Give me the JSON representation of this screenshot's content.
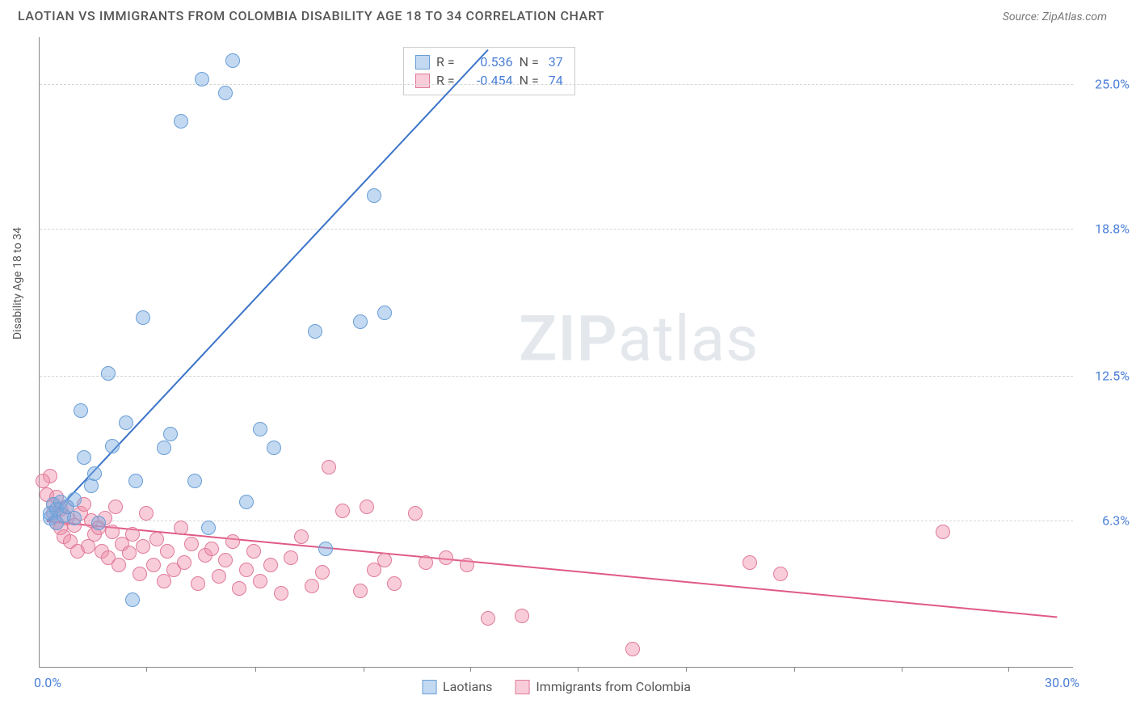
{
  "title": "LAOTIAN VS IMMIGRANTS FROM COLOMBIA DISABILITY AGE 18 TO 34 CORRELATION CHART",
  "source_label": "Source: ZipAtlas.com",
  "y_axis_label": "Disability Age 18 to 34",
  "watermark_a": "ZIP",
  "watermark_b": "atlas",
  "chart": {
    "type": "scatter",
    "xlim": [
      0,
      30
    ],
    "ylim": [
      0,
      27
    ],
    "x_origin_label": "0.0%",
    "x_max_label": "30.0%",
    "y_ticks": [
      6.3,
      12.5,
      18.8,
      25.0
    ],
    "y_tick_labels": [
      "6.3%",
      "12.5%",
      "18.8%",
      "25.0%"
    ],
    "x_tick_positions": [
      3.1,
      6.25,
      9.4,
      12.5,
      15.6,
      18.75,
      21.9,
      25.0,
      28.1
    ],
    "grid_color": "#d6d6d6",
    "axis_color": "#888888",
    "background_color": "#ffffff"
  },
  "series": {
    "laotians": {
      "label": "Laotians",
      "fill": "rgba(120,170,225,0.45)",
      "stroke": "#6a9ed6",
      "trend_color": "#3a73c9",
      "marker_r": 9,
      "R": "0.536",
      "N": "37",
      "trend": {
        "x1": 0.2,
        "y1": 6.3,
        "x2": 13.0,
        "y2": 26.5
      },
      "points": [
        [
          0.3,
          6.4
        ],
        [
          0.3,
          6.6
        ],
        [
          0.4,
          7.0
        ],
        [
          0.5,
          6.2
        ],
        [
          0.5,
          6.8
        ],
        [
          0.6,
          7.1
        ],
        [
          0.7,
          6.5
        ],
        [
          0.8,
          6.9
        ],
        [
          1.0,
          7.2
        ],
        [
          1.0,
          6.4
        ],
        [
          1.2,
          11.0
        ],
        [
          1.3,
          9.0
        ],
        [
          1.5,
          7.8
        ],
        [
          1.6,
          8.3
        ],
        [
          1.7,
          6.2
        ],
        [
          2.0,
          12.6
        ],
        [
          2.1,
          9.5
        ],
        [
          2.5,
          10.5
        ],
        [
          2.7,
          2.9
        ],
        [
          2.8,
          8.0
        ],
        [
          3.0,
          15.0
        ],
        [
          3.6,
          9.4
        ],
        [
          3.8,
          10.0
        ],
        [
          4.1,
          23.4
        ],
        [
          4.5,
          8.0
        ],
        [
          4.7,
          25.2
        ],
        [
          4.9,
          6.0
        ],
        [
          5.4,
          24.6
        ],
        [
          5.6,
          26.0
        ],
        [
          6.0,
          7.1
        ],
        [
          6.4,
          10.2
        ],
        [
          6.8,
          9.4
        ],
        [
          8.0,
          14.4
        ],
        [
          8.3,
          5.1
        ],
        [
          9.3,
          14.8
        ],
        [
          9.7,
          20.2
        ],
        [
          10.0,
          15.2
        ]
      ]
    },
    "colombia": {
      "label": "Immigrants from Colombia",
      "fill": "rgba(240,145,170,0.45)",
      "stroke": "#e07a9a",
      "trend_color": "#e05a85",
      "marker_r": 9,
      "R": "-0.454",
      "N": "74",
      "trend": {
        "x1": 0.2,
        "y1": 6.3,
        "x2": 29.5,
        "y2": 2.2
      },
      "points": [
        [
          0.2,
          7.4
        ],
        [
          0.3,
          8.2
        ],
        [
          0.4,
          6.6
        ],
        [
          0.4,
          7.0
        ],
        [
          0.5,
          6.2
        ],
        [
          0.5,
          7.3
        ],
        [
          0.6,
          6.0
        ],
        [
          0.6,
          6.8
        ],
        [
          0.7,
          5.6
        ],
        [
          0.8,
          6.4
        ],
        [
          0.8,
          6.9
        ],
        [
          0.9,
          5.4
        ],
        [
          1.0,
          6.1
        ],
        [
          1.1,
          5.0
        ],
        [
          1.2,
          6.6
        ],
        [
          1.3,
          7.0
        ],
        [
          1.4,
          5.2
        ],
        [
          1.5,
          6.3
        ],
        [
          1.6,
          5.7
        ],
        [
          1.7,
          6.0
        ],
        [
          1.8,
          5.0
        ],
        [
          1.9,
          6.4
        ],
        [
          2.0,
          4.7
        ],
        [
          2.1,
          5.8
        ],
        [
          2.2,
          6.9
        ],
        [
          2.3,
          4.4
        ],
        [
          2.4,
          5.3
        ],
        [
          2.6,
          4.9
        ],
        [
          2.7,
          5.7
        ],
        [
          2.9,
          4.0
        ],
        [
          3.0,
          5.2
        ],
        [
          3.1,
          6.6
        ],
        [
          3.3,
          4.4
        ],
        [
          3.4,
          5.5
        ],
        [
          3.6,
          3.7
        ],
        [
          3.7,
          5.0
        ],
        [
          3.9,
          4.2
        ],
        [
          4.1,
          6.0
        ],
        [
          4.2,
          4.5
        ],
        [
          4.4,
          5.3
        ],
        [
          4.6,
          3.6
        ],
        [
          4.8,
          4.8
        ],
        [
          5.0,
          5.1
        ],
        [
          5.2,
          3.9
        ],
        [
          5.4,
          4.6
        ],
        [
          5.6,
          5.4
        ],
        [
          5.8,
          3.4
        ],
        [
          6.0,
          4.2
        ],
        [
          6.2,
          5.0
        ],
        [
          6.4,
          3.7
        ],
        [
          6.7,
          4.4
        ],
        [
          7.0,
          3.2
        ],
        [
          7.3,
          4.7
        ],
        [
          7.6,
          5.6
        ],
        [
          7.9,
          3.5
        ],
        [
          8.2,
          4.1
        ],
        [
          8.4,
          8.6
        ],
        [
          8.8,
          6.7
        ],
        [
          9.3,
          3.3
        ],
        [
          9.5,
          6.9
        ],
        [
          9.7,
          4.2
        ],
        [
          10.0,
          4.6
        ],
        [
          10.3,
          3.6
        ],
        [
          10.9,
          6.6
        ],
        [
          11.2,
          4.5
        ],
        [
          11.8,
          4.7
        ],
        [
          12.4,
          4.4
        ],
        [
          13.0,
          2.1
        ],
        [
          14.0,
          2.2
        ],
        [
          17.2,
          0.8
        ],
        [
          20.6,
          4.5
        ],
        [
          21.5,
          4.0
        ],
        [
          26.2,
          5.8
        ],
        [
          0.1,
          8.0
        ]
      ]
    }
  },
  "legend_top": {
    "R_label": "R =",
    "N_label": "N ="
  }
}
